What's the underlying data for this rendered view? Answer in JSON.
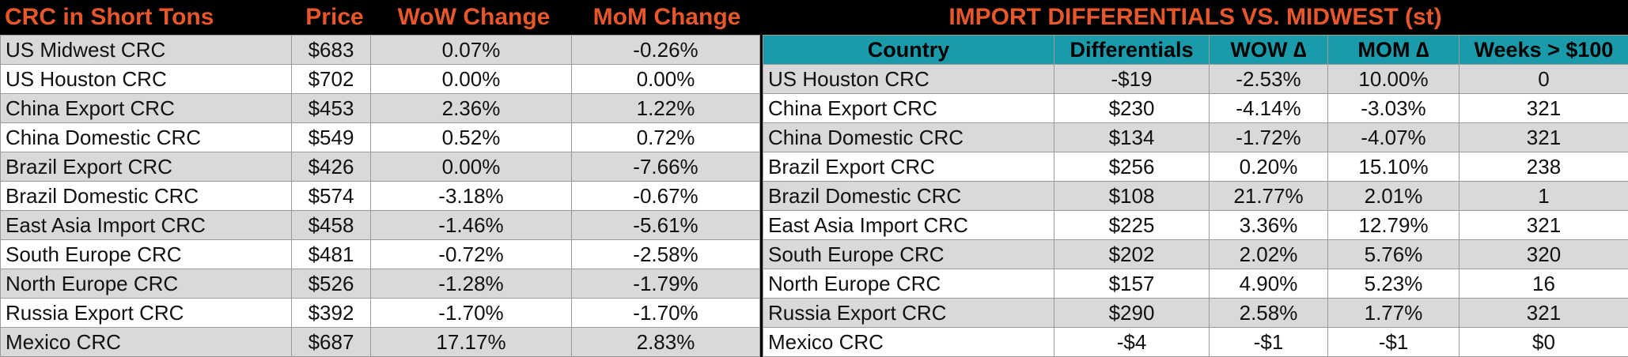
{
  "left": {
    "headers": [
      "CRC in Short Tons",
      "Price",
      "WoW Change",
      "MoM Change"
    ],
    "rows": [
      {
        "name": "US Midwest CRC",
        "price": "$683",
        "wow": "0.07%",
        "mom": "-0.26%"
      },
      {
        "name": "US Houston CRC",
        "price": "$702",
        "wow": "0.00%",
        "mom": "0.00%"
      },
      {
        "name": "China Export CRC",
        "price": "$453",
        "wow": "2.36%",
        "mom": "1.22%"
      },
      {
        "name": "China Domestic CRC",
        "price": "$549",
        "wow": "0.52%",
        "mom": "0.72%"
      },
      {
        "name": "Brazil Export CRC",
        "price": "$426",
        "wow": "0.00%",
        "mom": "-7.66%"
      },
      {
        "name": "Brazil Domestic CRC",
        "price": "$574",
        "wow": "-3.18%",
        "mom": "-0.67%"
      },
      {
        "name": "East Asia Import CRC",
        "price": "$458",
        "wow": "-1.46%",
        "mom": "-5.61%"
      },
      {
        "name": "South Europe CRC",
        "price": "$481",
        "wow": "-0.72%",
        "mom": "-2.58%"
      },
      {
        "name": "North Europe CRC",
        "price": "$526",
        "wow": "-1.28%",
        "mom": "-1.79%"
      },
      {
        "name": "Russia Export CRC",
        "price": "$392",
        "wow": "-1.70%",
        "mom": "-1.70%"
      },
      {
        "name": "Mexico CRC",
        "price": "$687",
        "wow": "17.17%",
        "mom": "2.83%"
      }
    ]
  },
  "right": {
    "title": "IMPORT DIFFERENTIALS VS. MIDWEST (st)",
    "headers": [
      "Country",
      "Differentials",
      "WOW ∆",
      "MOM ∆",
      "Weeks > $100"
    ],
    "rows": [
      {
        "name": "US Houston CRC",
        "diff": "-$19",
        "wow": "-2.53%",
        "mom": "10.00%",
        "weeks": "0"
      },
      {
        "name": "China Export CRC",
        "diff": "$230",
        "wow": "-4.14%",
        "mom": "-3.03%",
        "weeks": "321"
      },
      {
        "name": "China Domestic CRC",
        "diff": "$134",
        "wow": "-1.72%",
        "mom": "-4.07%",
        "weeks": "321"
      },
      {
        "name": "Brazil Export CRC",
        "diff": "$256",
        "wow": "0.20%",
        "mom": "15.10%",
        "weeks": "238"
      },
      {
        "name": "Brazil Domestic CRC",
        "diff": "$108",
        "wow": "21.77%",
        "mom": "2.01%",
        "weeks": "1"
      },
      {
        "name": "East Asia Import CRC",
        "diff": "$225",
        "wow": "3.36%",
        "mom": "12.79%",
        "weeks": "321"
      },
      {
        "name": "South Europe CRC",
        "diff": "$202",
        "wow": "2.02%",
        "mom": "5.76%",
        "weeks": "320"
      },
      {
        "name": "North Europe CRC",
        "diff": "$157",
        "wow": "4.90%",
        "mom": "5.23%",
        "weeks": "16"
      },
      {
        "name": "Russia Export CRC",
        "diff": "$290",
        "wow": "2.58%",
        "mom": "1.77%",
        "weeks": "321"
      },
      {
        "name": "Mexico CRC",
        "diff": "-$4",
        "wow": "-$1",
        "mom": "-$1",
        "weeks": "$0"
      }
    ]
  },
  "colors": {
    "header_text": "#e8572a",
    "header_bg": "#000000",
    "table_header_bg": "#1b9aaa",
    "row_shade": "#d9d9d9",
    "row_plain": "#ffffff"
  }
}
